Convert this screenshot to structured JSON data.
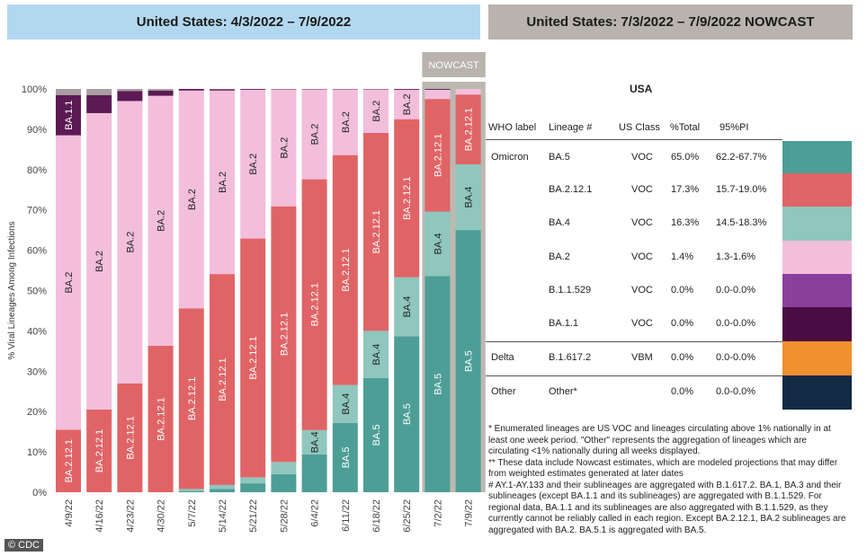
{
  "header": {
    "left_title": "United States: 4/3/2022 – 7/9/2022",
    "right_title": "United States: 7/3/2022 – 7/9/2022 NOWCAST"
  },
  "chart_data": {
    "type": "bar",
    "stacked": true,
    "ylabel": "% Viral Lineages Among Infections",
    "ylim": [
      0,
      100
    ],
    "yticks": [
      "0%",
      "10%",
      "20%",
      "30%",
      "40%",
      "50%",
      "60%",
      "70%",
      "80%",
      "90%",
      "100%"
    ],
    "nowcast_label": "NOWCAST",
    "categories": [
      "4/9/22",
      "4/16/22",
      "4/23/22",
      "4/30/22",
      "5/7/22",
      "5/14/22",
      "5/21/22",
      "5/28/22",
      "6/4/22",
      "6/11/22",
      "6/18/22",
      "6/25/22",
      "7/2/22",
      "7/9/22"
    ],
    "nowcast_categories": [
      "7/2/22",
      "7/9/22"
    ],
    "series": [
      {
        "name": "BA.5",
        "color": "#4d9e97",
        "values": [
          0,
          0,
          0,
          0,
          0.3,
          0.8,
          2.2,
          4.5,
          9.4,
          17.2,
          28.3,
          38.7,
          53.6,
          65.0
        ]
      },
      {
        "name": "BA.4",
        "color": "#8fc6bd",
        "values": [
          0,
          0,
          0,
          0,
          0.5,
          1.0,
          1.5,
          3.0,
          6.0,
          9.4,
          11.7,
          14.6,
          16.0,
          16.3
        ]
      },
      {
        "name": "BA.2.12.1",
        "color": "#e06466",
        "values": [
          15.5,
          20.5,
          27.0,
          36.3,
          44.8,
          52.3,
          59.2,
          63.4,
          62.2,
          57.0,
          49.1,
          39.2,
          27.9,
          17.3
        ]
      },
      {
        "name": "BA.2",
        "color": "#f2bedc",
        "values": [
          73.0,
          73.5,
          70.0,
          62.0,
          54.0,
          45.5,
          36.9,
          29.0,
          22.3,
          16.3,
          10.8,
          7.3,
          2.3,
          1.4
        ]
      },
      {
        "name": "BA.1.1",
        "color": "#5c1a55",
        "values": [
          10.0,
          4.5,
          2.5,
          1.3,
          0.4,
          0.3,
          0.2,
          0.1,
          0.1,
          0.1,
          0.1,
          0.2,
          0.2,
          0.0
        ]
      },
      {
        "name": "Other",
        "color": "#a89fa0",
        "values": [
          1.5,
          1.5,
          0.5,
          0.4,
          0,
          0.1,
          0,
          0,
          0,
          0,
          0,
          0,
          0,
          0
        ]
      }
    ],
    "bar_labels": [
      {
        "bar": 0,
        "series": "BA.2.12.1",
        "text": "BA.2.12.1"
      },
      {
        "bar": 0,
        "series": "BA.2",
        "text": "BA.2"
      },
      {
        "bar": 0,
        "series": "BA.1.1",
        "text": "BA.1.1"
      },
      {
        "bar": 1,
        "series": "BA.2.12.1",
        "text": "BA.2.12.1"
      },
      {
        "bar": 1,
        "series": "BA.2",
        "text": "BA.2"
      },
      {
        "bar": 2,
        "series": "BA.2.12.1",
        "text": "BA.2.12.1"
      },
      {
        "bar": 2,
        "series": "BA.2",
        "text": "BA.2"
      },
      {
        "bar": 3,
        "series": "BA.2.12.1",
        "text": "BA.2.12.1"
      },
      {
        "bar": 3,
        "series": "BA.2",
        "text": "BA.2"
      },
      {
        "bar": 4,
        "series": "BA.2.12.1",
        "text": "BA.2.12.1"
      },
      {
        "bar": 4,
        "series": "BA.2",
        "text": "BA.2"
      },
      {
        "bar": 5,
        "series": "BA.2.12.1",
        "text": "BA.2.12.1"
      },
      {
        "bar": 5,
        "series": "BA.2",
        "text": "BA.2"
      },
      {
        "bar": 6,
        "series": "BA.2.12.1",
        "text": "BA.2.12.1"
      },
      {
        "bar": 6,
        "series": "BA.2",
        "text": "BA.2"
      },
      {
        "bar": 7,
        "series": "BA.2.12.1",
        "text": "BA.2.12.1"
      },
      {
        "bar": 7,
        "series": "BA.2",
        "text": "BA.2"
      },
      {
        "bar": 8,
        "series": "BA.4",
        "text": "BA.4"
      },
      {
        "bar": 8,
        "series": "BA.2.12.1",
        "text": "BA.2.12.1"
      },
      {
        "bar": 8,
        "series": "BA.2",
        "text": "BA.2"
      },
      {
        "bar": 9,
        "series": "BA.5",
        "text": "BA.5"
      },
      {
        "bar": 9,
        "series": "BA.4",
        "text": "BA.4"
      },
      {
        "bar": 9,
        "series": "BA.2.12.1",
        "text": "BA.2.12.1"
      },
      {
        "bar": 9,
        "series": "BA.2",
        "text": "BA.2"
      },
      {
        "bar": 10,
        "series": "BA.5",
        "text": "BA.5"
      },
      {
        "bar": 10,
        "series": "BA.4",
        "text": "BA.4"
      },
      {
        "bar": 10,
        "series": "BA.2.12.1",
        "text": "BA.2.12.1"
      },
      {
        "bar": 10,
        "series": "BA.2",
        "text": "BA.2"
      },
      {
        "bar": 11,
        "series": "BA.5",
        "text": "BA.5"
      },
      {
        "bar": 11,
        "series": "BA.4",
        "text": "BA.4"
      },
      {
        "bar": 11,
        "series": "BA.2.12.1",
        "text": "BA.2.12.1"
      },
      {
        "bar": 11,
        "series": "BA.2",
        "text": "BA.2"
      },
      {
        "bar": 12,
        "series": "BA.5",
        "text": "BA.5"
      },
      {
        "bar": 12,
        "series": "BA.4",
        "text": "BA.4"
      },
      {
        "bar": 12,
        "series": "BA.2.12.1",
        "text": "BA.2.12.1"
      },
      {
        "bar": 13,
        "series": "BA.5",
        "text": "BA.5"
      },
      {
        "bar": 13,
        "series": "BA.4",
        "text": "BA.4"
      },
      {
        "bar": 13,
        "series": "BA.2.12.1",
        "text": "BA.2.12.1"
      }
    ]
  },
  "table": {
    "title": "USA",
    "headers": {
      "who": "WHO label",
      "lineage": "Lineage #",
      "class": "US Class",
      "total": "%Total",
      "pi": "95%PI"
    },
    "rows": [
      {
        "who": "Omicron",
        "lineage": "BA.5",
        "class": "VOC",
        "total": "65.0%",
        "pi": "62.2-67.7%",
        "color": "#4d9e97"
      },
      {
        "who": "",
        "lineage": "BA.2.12.1",
        "class": "VOC",
        "total": "17.3%",
        "pi": "15.7-19.0%",
        "color": "#e06466"
      },
      {
        "who": "",
        "lineage": "BA.4",
        "class": "VOC",
        "total": "16.3%",
        "pi": "14.5-18.3%",
        "color": "#8fc6bd"
      },
      {
        "who": "",
        "lineage": "BA.2",
        "class": "VOC",
        "total": "1.4%",
        "pi": "1.3-1.6%",
        "color": "#f2bedc"
      },
      {
        "who": "",
        "lineage": "B.1.1.529",
        "class": "VOC",
        "total": "0.0%",
        "pi": "0.0-0.0%",
        "color": "#8a3f9c"
      },
      {
        "who": "",
        "lineage": "BA.1.1",
        "class": "VOC",
        "total": "0.0%",
        "pi": "0.0-0.0%",
        "color": "#4b0b44"
      },
      {
        "who": "Delta",
        "lineage": "B.1.617.2",
        "class": "VBM",
        "total": "0.0%",
        "pi": "0.0-0.0%",
        "color": "#f0902e"
      },
      {
        "who": "Other",
        "lineage": "Other*",
        "class": "",
        "total": "0.0%",
        "pi": "0.0-0.0%",
        "color": "#132a45"
      }
    ]
  },
  "notes": [
    "*      Enumerated lineages are US VOC and lineages circulating above 1% nationally in at least one week period. \"Other\" represents the aggregation of lineages which are circulating <1% nationally during all weeks displayed.",
    "**      These data include Nowcast estimates, which are modeled projections that may differ from weighted estimates generated at later dates",
    "#      AY.1-AY.133 and their sublineages are aggregated with B.1.617.2. BA.1, BA.3 and their sublineages (except BA.1.1 and its sublineages) are aggregated with B.1.1.529. For regional data, BA.1.1 and its sublineages are also aggregated with B.1.1.529, as they currently cannot be reliably called in each region. Except BA.2.12.1, BA.2 sublineages are aggregated with BA.2. BA.5.1 is aggregated with BA.5."
  ],
  "source_badge": "© CDC"
}
